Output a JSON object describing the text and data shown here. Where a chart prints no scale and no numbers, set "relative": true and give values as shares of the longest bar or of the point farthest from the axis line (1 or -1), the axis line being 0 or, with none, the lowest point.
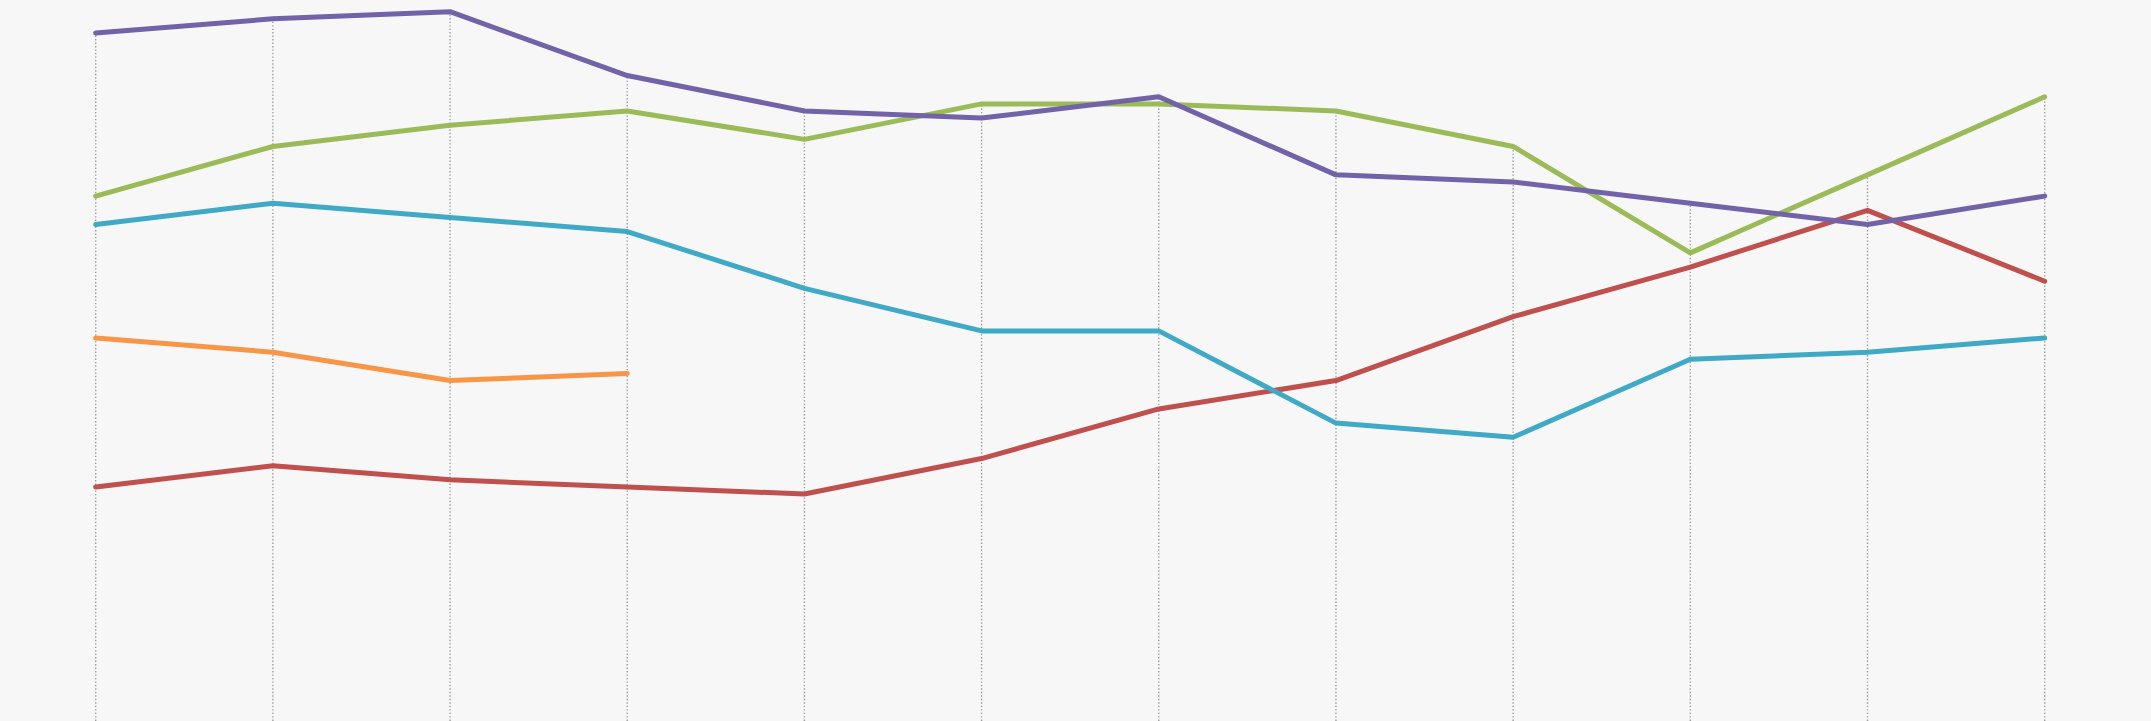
{
  "chart_data": {
    "type": "line",
    "relative": true,
    "grid": "x",
    "categories": [
      null,
      null,
      null,
      null,
      null,
      null,
      null,
      null,
      null,
      null,
      null,
      null
    ],
    "series": [
      {
        "color": "#c0504d",
        "values": [
          0.33,
          0.36,
          0.34,
          0.33,
          0.32,
          0.37,
          0.44,
          0.48,
          0.57,
          0.64,
          0.72,
          0.62
        ]
      },
      {
        "color": "#9bbb59",
        "values": [
          0.74,
          0.81,
          0.84,
          0.86,
          0.82,
          0.87,
          0.87,
          0.86,
          0.81,
          0.66,
          0.77,
          0.88
        ]
      },
      {
        "color": "#7262a8",
        "values": [
          0.97,
          0.99,
          1.0,
          0.91,
          0.86,
          0.85,
          0.88,
          0.77,
          0.76,
          0.73,
          0.7,
          0.74
        ]
      },
      {
        "color": "#40a9c6",
        "values": [
          0.7,
          0.73,
          0.71,
          0.69,
          0.61,
          0.55,
          0.55,
          0.42,
          0.4,
          0.51,
          0.52,
          0.54
        ]
      },
      {
        "color": "#f79646",
        "values": [
          0.54,
          0.52,
          0.48,
          0.49,
          null,
          null,
          null,
          null,
          null,
          null,
          null,
          null
        ]
      }
    ]
  }
}
